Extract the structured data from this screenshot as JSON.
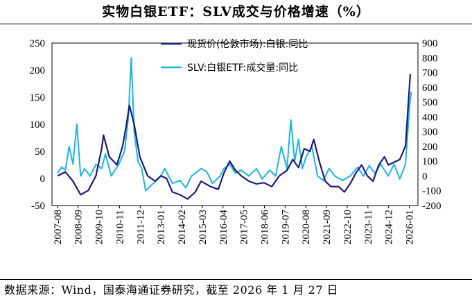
{
  "title": "实物白银ETF：SLV成交与价格增速（%）",
  "source": "数据来源：Wind，国泰海通证券研究，截至 2026 年 1 月 27 日",
  "chart_data": {
    "type": "line",
    "title": "实物白银ETF：SLV成交与价格增速（%）",
    "x": [
      "2007-08",
      "2008-09",
      "2009-10",
      "2010-11",
      "2011-12",
      "2013-01",
      "2014-02",
      "2015-03",
      "2016-04",
      "2017-05",
      "2018-06",
      "2019-07",
      "2020-08",
      "2021-09",
      "2022-10",
      "2023-11",
      "2024-12",
      "2026-01"
    ],
    "ylim_left": [
      -50,
      250
    ],
    "yticks_left": [
      "250",
      "200",
      "150",
      "100",
      "50",
      "0",
      "-50"
    ],
    "ylim_right": [
      -200,
      900
    ],
    "yticks_right": [
      "900",
      "800",
      "700",
      "600",
      "500",
      "400",
      "300",
      "200",
      "100",
      "0",
      "-100",
      "-200"
    ],
    "series": [
      {
        "name": "现货价(伦敦市场):白银:同比",
        "axis": "left",
        "color": "#1a1a7e",
        "points": [
          [
            2007.6,
            5
          ],
          [
            2008.0,
            12
          ],
          [
            2008.4,
            -5
          ],
          [
            2008.8,
            -30
          ],
          [
            2009.2,
            -22
          ],
          [
            2009.6,
            5
          ],
          [
            2009.9,
            55
          ],
          [
            2010.0,
            80
          ],
          [
            2010.3,
            40
          ],
          [
            2010.7,
            25
          ],
          [
            2011.0,
            60
          ],
          [
            2011.2,
            100
          ],
          [
            2011.35,
            135
          ],
          [
            2011.6,
            100
          ],
          [
            2011.9,
            40
          ],
          [
            2012.3,
            5
          ],
          [
            2012.7,
            -5
          ],
          [
            2013.0,
            5
          ],
          [
            2013.3,
            0
          ],
          [
            2013.6,
            -25
          ],
          [
            2014.0,
            -30
          ],
          [
            2014.4,
            -38
          ],
          [
            2014.8,
            -25
          ],
          [
            2015.1,
            -5
          ],
          [
            2015.6,
            -15
          ],
          [
            2016.0,
            -20
          ],
          [
            2016.3,
            10
          ],
          [
            2016.6,
            32
          ],
          [
            2016.9,
            15
          ],
          [
            2017.2,
            5
          ],
          [
            2017.6,
            -5
          ],
          [
            2018.0,
            -10
          ],
          [
            2018.4,
            -8
          ],
          [
            2018.8,
            -15
          ],
          [
            2019.2,
            5
          ],
          [
            2019.6,
            15
          ],
          [
            2019.9,
            35
          ],
          [
            2020.2,
            20
          ],
          [
            2020.5,
            55
          ],
          [
            2020.8,
            50
          ],
          [
            2021.0,
            72
          ],
          [
            2021.3,
            30
          ],
          [
            2021.6,
            -5
          ],
          [
            2021.9,
            -15
          ],
          [
            2022.3,
            -15
          ],
          [
            2022.6,
            -25
          ],
          [
            2022.9,
            -10
          ],
          [
            2023.2,
            10
          ],
          [
            2023.5,
            25
          ],
          [
            2023.8,
            5
          ],
          [
            2024.1,
            -5
          ],
          [
            2024.4,
            25
          ],
          [
            2024.7,
            40
          ],
          [
            2024.9,
            25
          ],
          [
            2025.2,
            30
          ],
          [
            2025.5,
            35
          ],
          [
            2025.8,
            60
          ],
          [
            2025.95,
            140
          ],
          [
            2026.05,
            193
          ]
        ]
      },
      {
        "name": "SLV:白银ETF:成交量:同比",
        "axis": "right",
        "color": "#1ab4e6",
        "points": [
          [
            2007.6,
            20
          ],
          [
            2007.8,
            60
          ],
          [
            2008.0,
            40
          ],
          [
            2008.2,
            200
          ],
          [
            2008.4,
            80
          ],
          [
            2008.6,
            350
          ],
          [
            2008.8,
            0
          ],
          [
            2009.0,
            50
          ],
          [
            2009.3,
            0
          ],
          [
            2009.6,
            80
          ],
          [
            2009.9,
            50
          ],
          [
            2010.1,
            150
          ],
          [
            2010.4,
            0
          ],
          [
            2010.8,
            80
          ],
          [
            2011.1,
            170
          ],
          [
            2011.3,
            400
          ],
          [
            2011.45,
            800
          ],
          [
            2011.6,
            300
          ],
          [
            2011.8,
            100
          ],
          [
            2012.0,
            50
          ],
          [
            2012.2,
            -100
          ],
          [
            2012.6,
            -50
          ],
          [
            2013.0,
            0
          ],
          [
            2013.2,
            50
          ],
          [
            2013.6,
            -50
          ],
          [
            2014.0,
            -30
          ],
          [
            2014.3,
            -80
          ],
          [
            2014.6,
            0
          ],
          [
            2014.9,
            30
          ],
          [
            2015.1,
            50
          ],
          [
            2015.4,
            30
          ],
          [
            2015.7,
            -50
          ],
          [
            2016.1,
            0
          ],
          [
            2016.3,
            50
          ],
          [
            2016.6,
            80
          ],
          [
            2016.9,
            20
          ],
          [
            2017.2,
            40
          ],
          [
            2017.6,
            0
          ],
          [
            2018.0,
            50
          ],
          [
            2018.3,
            -20
          ],
          [
            2018.7,
            40
          ],
          [
            2019.0,
            0
          ],
          [
            2019.3,
            200
          ],
          [
            2019.6,
            50
          ],
          [
            2019.8,
            380
          ],
          [
            2020.0,
            100
          ],
          [
            2020.2,
            250
          ],
          [
            2020.4,
            50
          ],
          [
            2020.6,
            130
          ],
          [
            2020.9,
            200
          ],
          [
            2021.2,
            0
          ],
          [
            2021.5,
            -30
          ],
          [
            2021.8,
            50
          ],
          [
            2022.1,
            0
          ],
          [
            2022.5,
            -30
          ],
          [
            2022.9,
            0
          ],
          [
            2023.3,
            60
          ],
          [
            2023.6,
            0
          ],
          [
            2023.9,
            70
          ],
          [
            2024.2,
            20
          ],
          [
            2024.5,
            80
          ],
          [
            2024.9,
            0
          ],
          [
            2025.2,
            80
          ],
          [
            2025.5,
            -20
          ],
          [
            2025.8,
            80
          ],
          [
            2026.0,
            450
          ],
          [
            2026.1,
            570
          ]
        ]
      }
    ]
  }
}
